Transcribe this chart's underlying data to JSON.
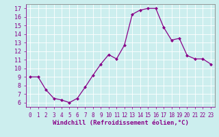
{
  "hours": [
    0,
    1,
    2,
    3,
    4,
    5,
    6,
    7,
    8,
    9,
    10,
    11,
    12,
    13,
    14,
    15,
    16,
    17,
    18,
    19,
    20,
    21,
    22,
    23
  ],
  "values": [
    9.0,
    9.0,
    7.5,
    6.5,
    6.3,
    6.0,
    6.5,
    7.8,
    9.2,
    10.5,
    11.6,
    11.1,
    12.7,
    16.3,
    16.8,
    17.0,
    17.0,
    14.8,
    13.3,
    13.5,
    11.5,
    11.1,
    11.1,
    10.5
  ],
  "line_color": "#880088",
  "marker": "D",
  "marker_size": 2.0,
  "bg_color": "#cceeee",
  "grid_color": "#aadddd",
  "xlabel": "Windchill (Refroidissement éolien,°C)",
  "xlabel_fontsize": 6.5,
  "ytick_fontsize": 6,
  "xtick_fontsize": 5.5,
  "xlim": [
    -0.5,
    23.5
  ],
  "ylim": [
    5.5,
    17.5
  ],
  "yticks": [
    6,
    7,
    8,
    9,
    10,
    11,
    12,
    13,
    14,
    15,
    16,
    17
  ],
  "xticks": [
    0,
    1,
    2,
    3,
    4,
    5,
    6,
    7,
    8,
    9,
    10,
    11,
    12,
    13,
    14,
    15,
    16,
    17,
    18,
    19,
    20,
    21,
    22,
    23
  ],
  "tick_color": "#880088",
  "spine_color": "#888888"
}
